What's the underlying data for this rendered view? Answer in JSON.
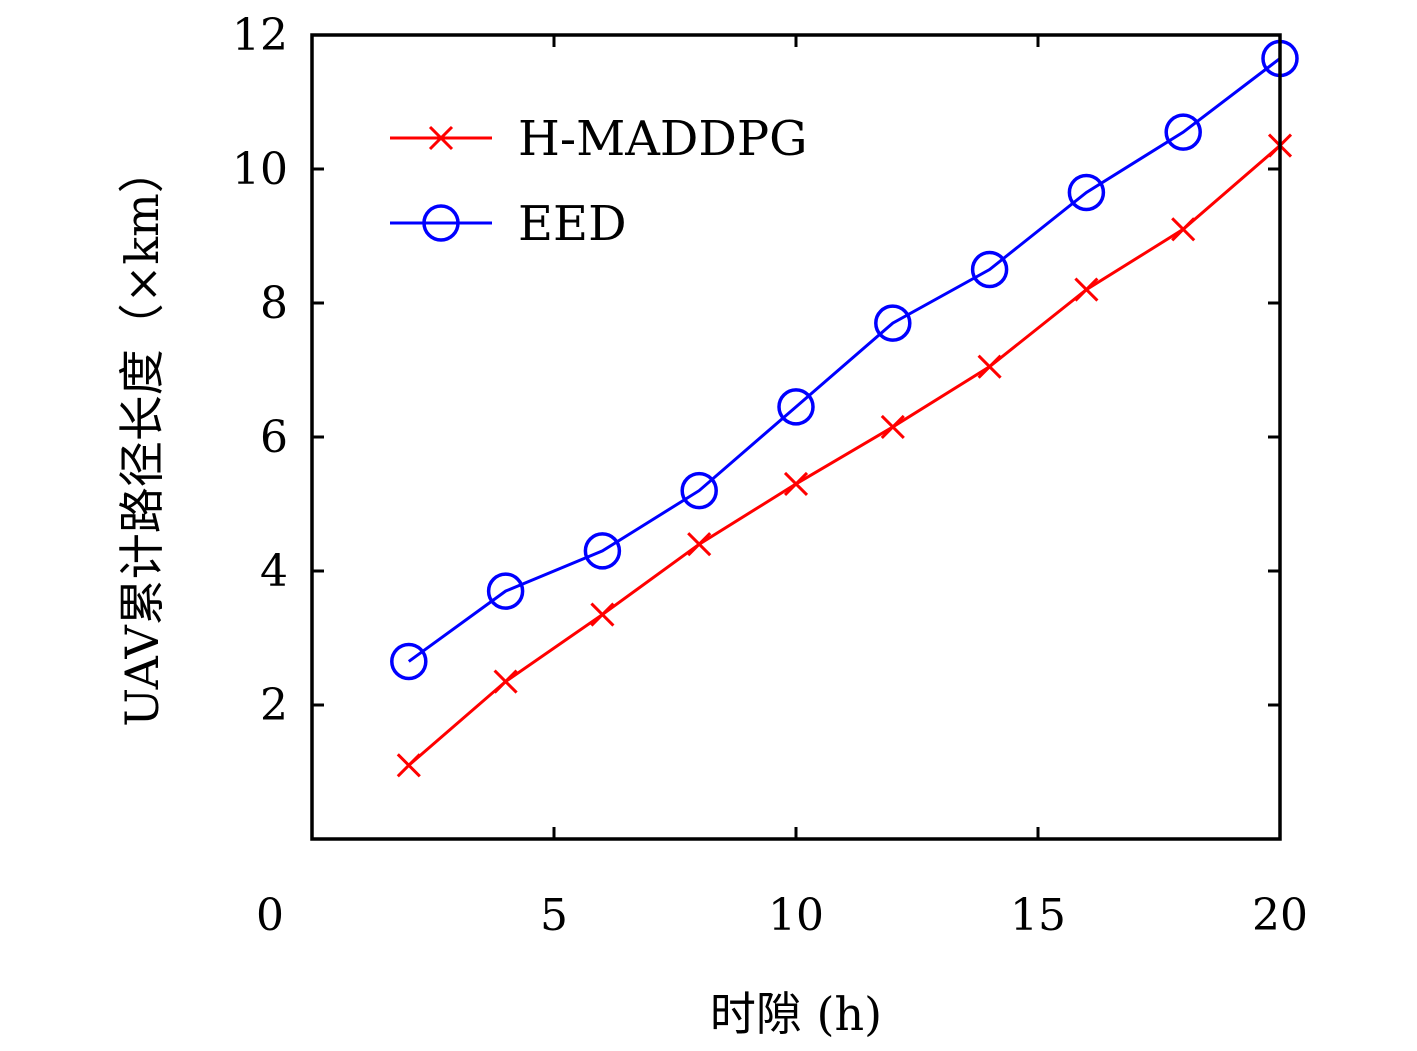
{
  "chart_data": {
    "type": "line",
    "title": "",
    "xlabel": "时隙 (h)",
    "ylabel": "UAV累计路径长度（×km）",
    "xlim": [
      0,
      20
    ],
    "ylim": [
      0,
      12
    ],
    "x_ticks": [
      "0",
      "5",
      "10",
      "15",
      "20"
    ],
    "y_ticks": [
      "2",
      "4",
      "6",
      "8",
      "10",
      "12"
    ],
    "grid": false,
    "legend_position": "top-left",
    "x": [
      2,
      4,
      6,
      8,
      10,
      12,
      14,
      16,
      18,
      20
    ],
    "series": [
      {
        "name": "H-MADDPG",
        "color": "#ff0000",
        "marker": "x",
        "values": [
          1.1,
          2.35,
          3.35,
          4.4,
          5.3,
          6.15,
          7.05,
          8.2,
          9.1,
          10.35
        ]
      },
      {
        "name": "EED",
        "color": "#0000ff",
        "marker": "circle",
        "values": [
          2.65,
          3.7,
          4.3,
          5.2,
          6.45,
          7.7,
          8.5,
          9.65,
          10.55,
          11.65
        ]
      }
    ]
  }
}
